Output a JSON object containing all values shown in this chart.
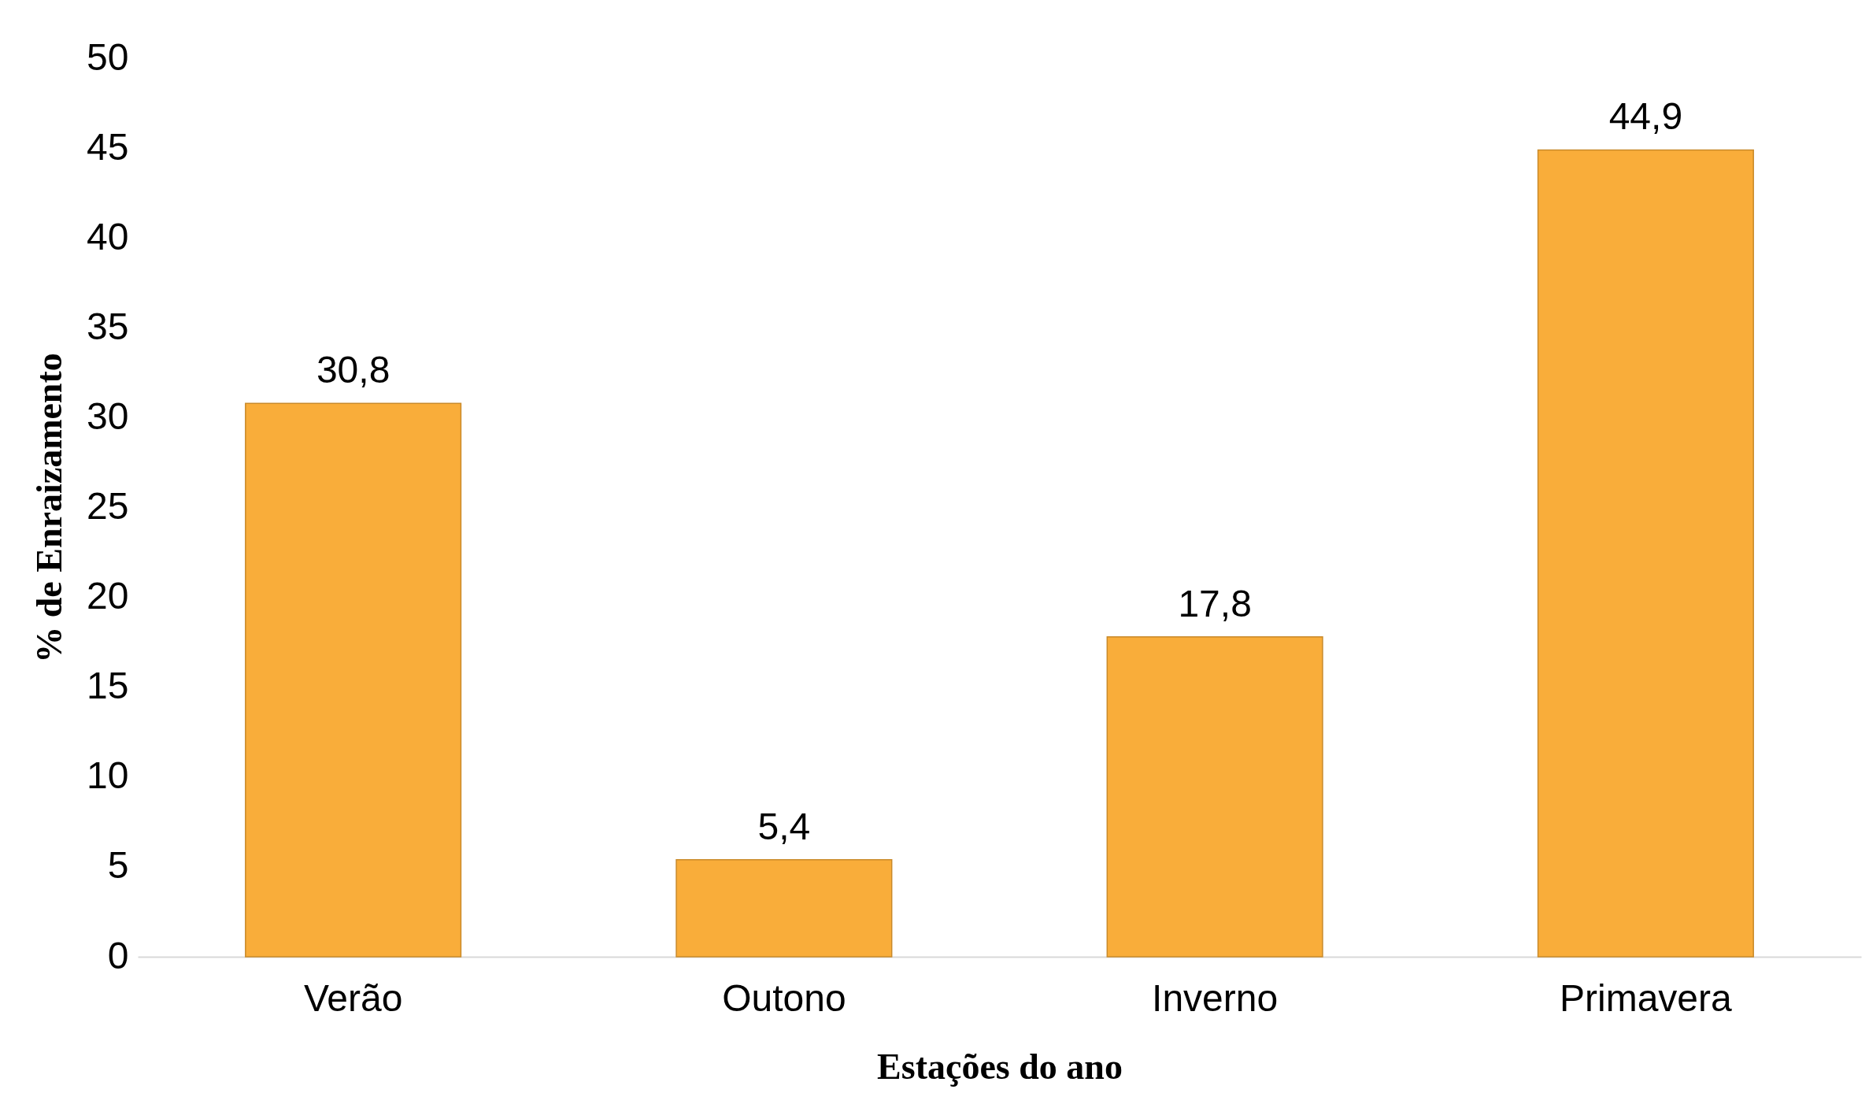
{
  "chart_data": {
    "type": "bar",
    "xlabel": "Estações do ano",
    "ylabel": "% de Enraizamento",
    "categories": [
      "Verão",
      "Outono",
      "Inverno",
      "Primavera"
    ],
    "values": [
      30.8,
      5.4,
      17.8,
      44.9
    ],
    "value_labels": [
      "30,8",
      "5,4",
      "17,8",
      "44,9"
    ],
    "color": "#f9ad3a",
    "ylim": [
      0,
      50
    ],
    "yticks": [
      0,
      5,
      10,
      15,
      20,
      25,
      30,
      35,
      40,
      45,
      50
    ],
    "grid": false
  }
}
